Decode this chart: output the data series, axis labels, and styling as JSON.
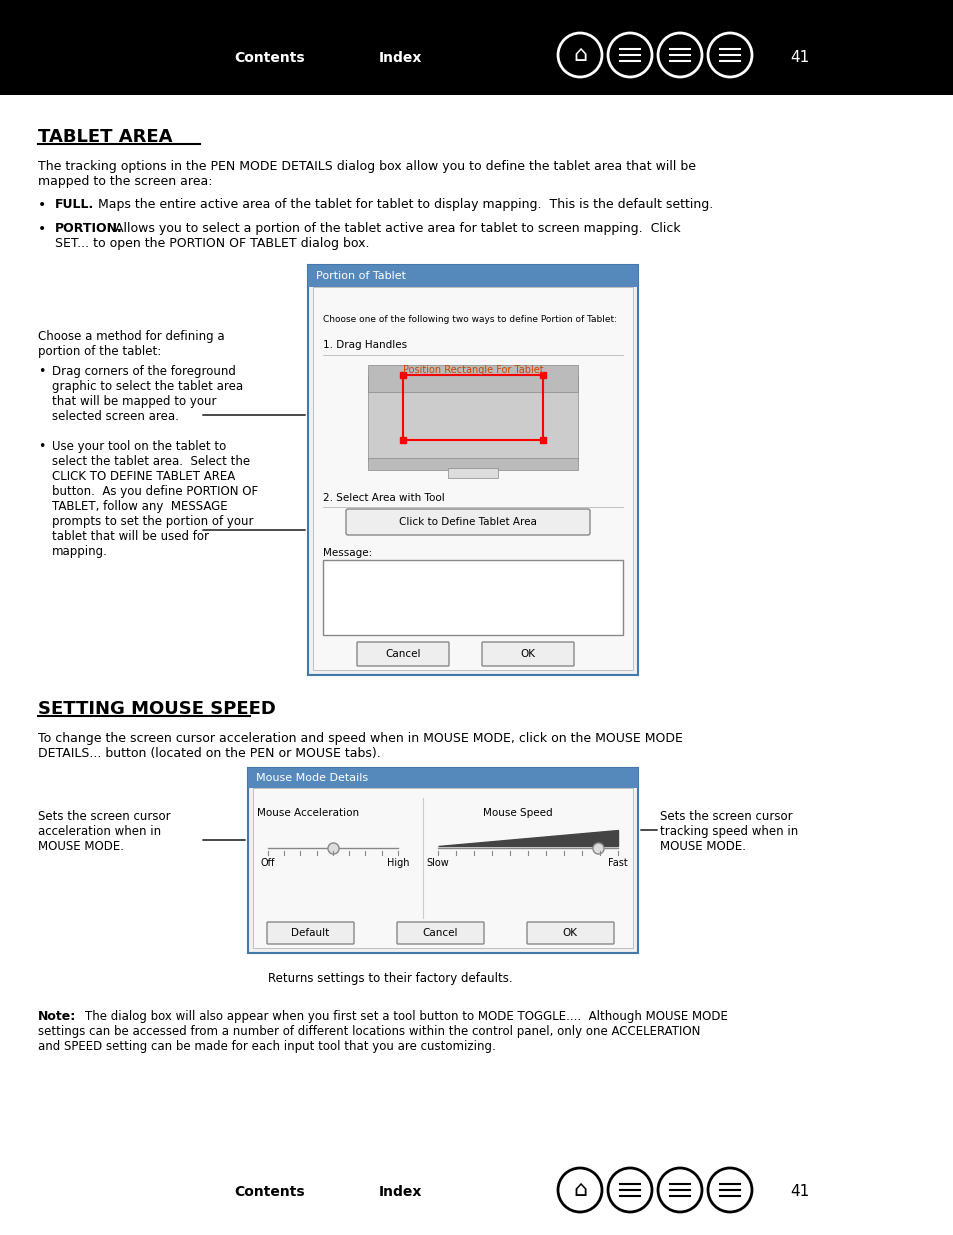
{
  "page_number": "41",
  "bg_color": "#ffffff",
  "header_bg": "#000000",
  "header_text_color": "#ffffff",
  "header_contents": "Contents",
  "header_index": "Index",
  "section1_title": "TABLET AREA",
  "section1_intro": "The tracking options in the PEN MODE DETAILS dialog box allow you to define the tablet area that will be\nmapped to the screen area:",
  "section1_bullet1_bold": "FULL.",
  "section1_bullet1_rest": "  Maps the entire active area of the tablet for tablet to display mapping.  This is the default setting.",
  "section1_bullet2_bold": "PORTION.",
  "section1_bullet2_rest": "  Allows you to select a portion of the tablet active area for tablet to screen mapping.  Click\nSET... to open the PORTION OF TABLET dialog box.",
  "left_note1": "Choose a method for defining a\nportion of the tablet:",
  "left_bullet1": "Drag corners of the foreground\ngraphic to select the tablet area\nthat will be mapped to your\nselected screen area.",
  "left_bullet2": "Use your tool on the tablet to\nselect the tablet area.  Select the\nCLICK TO DEFINE TABLET AREA\nbutton.  As you define PORTION OF\nTABLET, follow any  MESSAGE\nprompts to set the portion of your\ntablet that will be used for\nmapping.",
  "section2_title": "SETTING MOUSE SPEED",
  "section2_intro": "To change the screen cursor acceleration and speed when in MOUSE MODE, click on the MOUSE MODE\nDETAILS... button (located on the PEN or MOUSE tabs).",
  "left_note2": "Sets the screen cursor\nacceleration when in\nMOUSE MODE.",
  "right_note2": "Sets the screen cursor\ntracking speed when in\nMOUSE MODE.",
  "bottom_note_label": "Returns settings to their factory defaults.",
  "note_text": "Note: The dialog box will also appear when you first set a tool button to MODE TOGGLE....  Although MOUSE MODE\nsettings can be accessed from a number of different locations within the control panel, only one ACCELERATION\nand SPEED setting can be made for each input tool that you are customizing.",
  "footer_contents": "Contents",
  "footer_index": "Index",
  "footer_page": "41"
}
